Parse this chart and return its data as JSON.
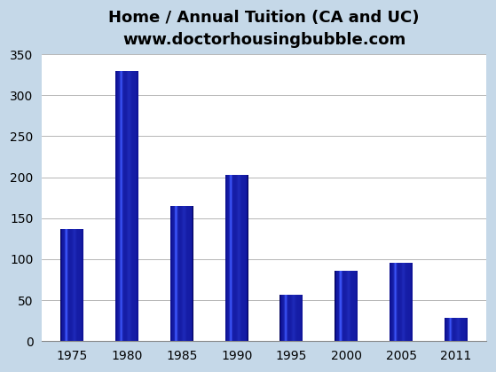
{
  "title_line1": "Home / Annual Tuition (CA and UC)",
  "title_line2": "www.doctorhousingbubble.com",
  "categories": [
    "1975",
    "1980",
    "1985",
    "1990",
    "1995",
    "2000",
    "2005",
    "2011"
  ],
  "values": [
    137,
    330,
    165,
    203,
    57,
    86,
    96,
    28
  ],
  "ylim": [
    0,
    350
  ],
  "yticks": [
    0,
    50,
    100,
    150,
    200,
    250,
    300,
    350
  ],
  "background_color": "#C5D8E8",
  "plot_bg_color": "#FFFFFF",
  "title_fontsize": 13,
  "subtitle_fontsize": 12,
  "tick_fontsize": 10,
  "bar_width": 0.42,
  "grid_color": "#AAAAAA"
}
